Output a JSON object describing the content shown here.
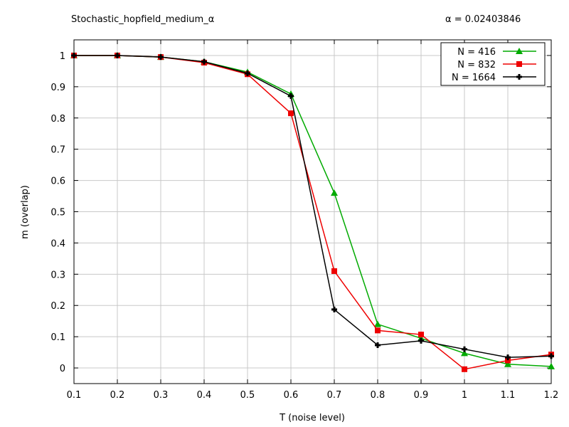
{
  "chart_data": {
    "type": "line",
    "title": "Stochastic_hopfield_medium_α",
    "annotation": "α = 0.02403846",
    "xlabel": "T (noise level)",
    "ylabel": "m (overlap)",
    "xlim": [
      0.1,
      1.2
    ],
    "ylim": [
      -0.05,
      1.05
    ],
    "xticks": [
      "0.1",
      "0.2",
      "0.3",
      "0.4",
      "0.5",
      "0.6",
      "0.7",
      "0.8",
      "0.9",
      "1",
      "1.1",
      "1.2"
    ],
    "yticks": [
      "0",
      "0.1",
      "0.2",
      "0.3",
      "0.4",
      "0.5",
      "0.6",
      "0.7",
      "0.8",
      "0.9",
      "1"
    ],
    "grid": true,
    "legend_position": "top-right",
    "x": [
      0.1,
      0.2,
      0.3,
      0.4,
      0.5,
      0.6,
      0.7,
      0.8,
      0.9,
      1.0,
      1.1,
      1.2
    ],
    "series": [
      {
        "name": "N = 416",
        "color": "#00aa00",
        "marker": "triangle",
        "values": [
          1.0,
          1.0,
          0.995,
          0.98,
          0.947,
          0.877,
          0.56,
          0.14,
          0.095,
          0.047,
          0.012,
          0.005
        ]
      },
      {
        "name": "N = 832",
        "color": "#ee0000",
        "marker": "square",
        "values": [
          1.0,
          1.0,
          0.995,
          0.977,
          0.94,
          0.815,
          0.31,
          0.12,
          0.107,
          -0.004,
          0.024,
          0.043
        ]
      },
      {
        "name": "N = 1664",
        "color": "#000000",
        "marker": "cross",
        "values": [
          1.0,
          1.0,
          0.995,
          0.98,
          0.943,
          0.87,
          0.187,
          0.073,
          0.087,
          0.06,
          0.034,
          0.038
        ]
      }
    ]
  }
}
